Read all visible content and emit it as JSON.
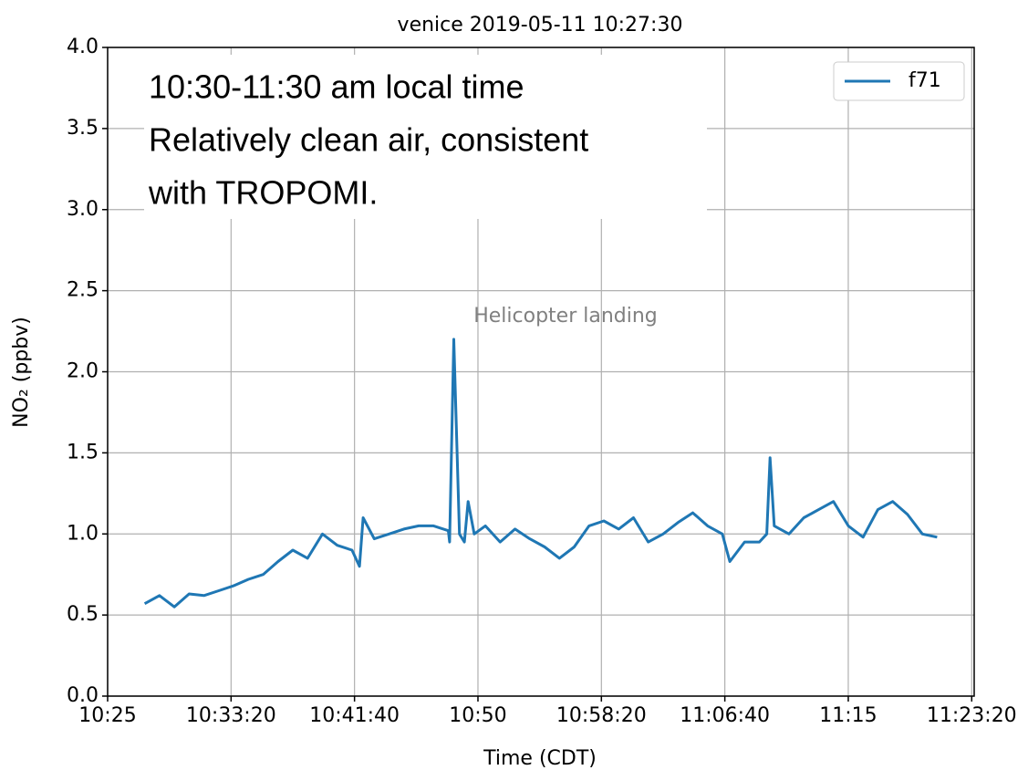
{
  "chart_data": {
    "type": "line",
    "title": "venice 2019-05-11 10:27:30",
    "xlabel": "Time (CDT)",
    "ylabel": "NO₂ (ppbv)",
    "annotation": "Helicopter landing",
    "note": [
      "10:30-11:30 am local time",
      "Relatively clean air, consistent",
      "with TROPOMI."
    ],
    "legend": "upper right",
    "grid": true,
    "xlim": [
      "10:25:00",
      "11:23:30"
    ],
    "xticks": [
      "10:25",
      "10:33:20",
      "10:41:40",
      "10:50",
      "10:58:20",
      "11:06:40",
      "11:15",
      "11:23:20"
    ],
    "ylim": [
      0,
      4
    ],
    "yticks": [
      {
        "value": 0,
        "label": "0.0"
      },
      0.5,
      {
        "value": 1,
        "label": "1.0"
      },
      1.5,
      {
        "value": 2,
        "label": "2.0"
      },
      2.5,
      {
        "value": 3,
        "label": "3.0"
      },
      3.5,
      {
        "value": 4,
        "label": "4.0"
      }
    ],
    "x": [
      "10:27:30",
      "10:28:30",
      "10:29:30",
      "10:30:30",
      "10:31:30",
      "10:32:30",
      "10:33:30",
      "10:34:30",
      "10:35:30",
      "10:36:30",
      "10:37:30",
      "10:38:30",
      "10:39:30",
      "10:40:30",
      "10:41:30",
      "10:42:00",
      "10:42:15",
      "10:43:00",
      "10:44:00",
      "10:45:00",
      "10:46:00",
      "10:47:00",
      "10:48:00",
      "10:48:05",
      "10:48:22",
      "10:48:45",
      "10:49:05",
      "10:49:20",
      "10:49:45",
      "10:50:30",
      "10:51:30",
      "10:52:30",
      "10:53:30",
      "10:54:30",
      "10:55:30",
      "10:56:30",
      "10:57:30",
      "10:58:30",
      "10:59:30",
      "11:00:30",
      "11:01:30",
      "11:02:30",
      "11:03:30",
      "11:04:30",
      "11:05:30",
      "11:06:30",
      "11:07:00",
      "11:08:00",
      "11:09:00",
      "11:09:30",
      "11:09:43",
      "11:10:00",
      "11:11:00",
      "11:12:00",
      "11:13:00",
      "11:14:00",
      "11:15:00",
      "11:16:00",
      "11:17:00",
      "11:18:00",
      "11:19:00",
      "11:20:00",
      "11:21:00"
    ],
    "series": [
      {
        "name": "f71",
        "color": "#1f77b4",
        "values": [
          0.57,
          0.62,
          0.55,
          0.63,
          0.62,
          0.65,
          0.68,
          0.72,
          0.75,
          0.83,
          0.9,
          0.85,
          1.0,
          0.93,
          0.9,
          0.8,
          1.1,
          0.97,
          1.0,
          1.03,
          1.05,
          1.05,
          1.02,
          0.95,
          2.2,
          1.0,
          0.95,
          1.2,
          1.0,
          1.05,
          0.95,
          1.03,
          0.97,
          0.92,
          0.85,
          0.92,
          1.05,
          1.08,
          1.03,
          1.1,
          0.95,
          1.0,
          1.07,
          1.13,
          1.05,
          1.0,
          0.83,
          0.95,
          0.95,
          1.0,
          1.47,
          1.05,
          1.0,
          1.1,
          1.15,
          1.2,
          1.05,
          0.98,
          1.15,
          1.2,
          1.12,
          1.0,
          0.98
        ]
      }
    ]
  }
}
